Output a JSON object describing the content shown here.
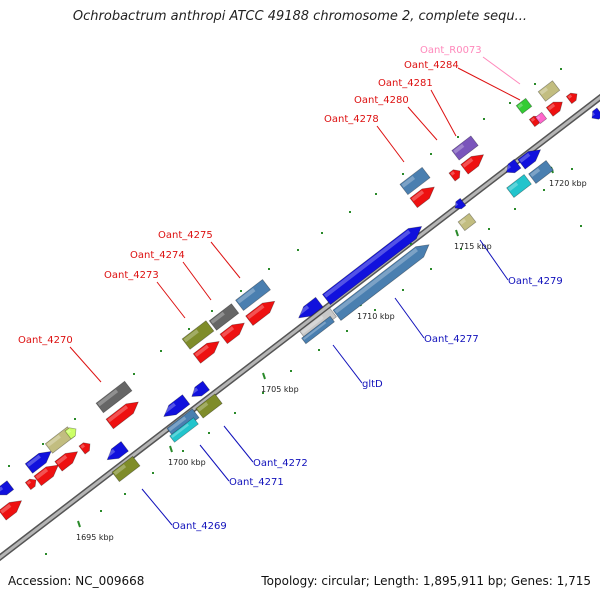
{
  "title": "Ochrobactrum anthropi ATCC 49188 chromosome 2, complete sequ...",
  "footer": {
    "accession": "Accession: NC_009668",
    "summary": "Topology: circular; Length: 1,895,911 bp; Genes: 1,715"
  },
  "colors": {
    "red": "#ee1111",
    "blue": "#1111dd",
    "steelblue": "#4a7fb0",
    "gray": "#666666",
    "olive": "#7f8c2a",
    "khaki": "#c2bd80",
    "cyan": "#22c4cc",
    "purple": "#7a55bb",
    "green": "#33cc33",
    "pink": "#ff66cc",
    "lightgray": "#c8c8c8",
    "label_red": "#dd1111",
    "label_blue": "#1111bb",
    "label_pink": "#ff88bb"
  },
  "scale_ticks": [
    {
      "label": "1695 kbp"
    },
    {
      "label": "1700 kbp"
    },
    {
      "label": "1705 kbp"
    },
    {
      "label": "1710 kbp"
    },
    {
      "label": "1715 kbp"
    },
    {
      "label": "1720 kbp"
    }
  ],
  "gene_labels": [
    {
      "name": "Oant_R0073",
      "color": "pink"
    },
    {
      "name": "Oant_4284",
      "color": "red"
    },
    {
      "name": "Oant_4281",
      "color": "red"
    },
    {
      "name": "Oant_4280",
      "color": "red"
    },
    {
      "name": "Oant_4278",
      "color": "red"
    },
    {
      "name": "Oant_4275",
      "color": "red"
    },
    {
      "name": "Oant_4274",
      "color": "red"
    },
    {
      "name": "Oant_4273",
      "color": "red"
    },
    {
      "name": "Oant_4270",
      "color": "red"
    },
    {
      "name": "Oant_4279",
      "color": "blue"
    },
    {
      "name": "Oant_4277",
      "color": "blue"
    },
    {
      "name": "gltD",
      "color": "blue"
    },
    {
      "name": "Oant_4272",
      "color": "blue"
    },
    {
      "name": "Oant_4271",
      "color": "blue"
    },
    {
      "name": "Oant_4269",
      "color": "blue"
    }
  ]
}
